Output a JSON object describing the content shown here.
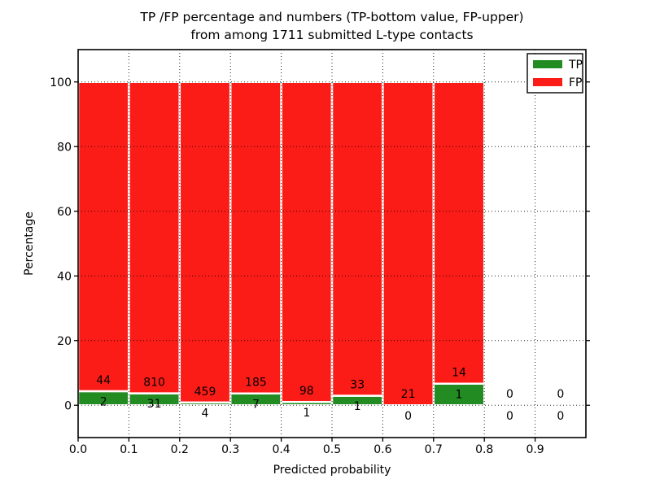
{
  "title": {
    "line1": "TP /FP percentage and numbers (TP-bottom value, FP-upper)",
    "line2": "from among 1711 submitted L-type contacts"
  },
  "axes": {
    "xlabel": "Predicted probability",
    "ylabel": "Percentage",
    "xticks": [
      "0.0",
      "0.1",
      "0.2",
      "0.3",
      "0.4",
      "0.5",
      "0.6",
      "0.7",
      "0.8",
      "0.9"
    ],
    "yticks": [
      "0",
      "20",
      "40",
      "60",
      "80",
      "100"
    ]
  },
  "legend": {
    "items": [
      {
        "label": "TP",
        "color": "#228b22"
      },
      {
        "label": "FP",
        "color": "#fc1c17"
      }
    ]
  },
  "colors": {
    "tp_green": "#228b22",
    "fp_red": "#fc1c17",
    "bar_edge": "#ffffff",
    "grid": "#000000",
    "background": "#ffffff"
  },
  "chart_data": {
    "type": "bar",
    "subtype": "stacked-percentage-histogram",
    "title": "TP /FP percentage and numbers (TP-bottom value, FP-upper) from among 1711 submitted L-type contacts",
    "xlabel": "Predicted probability",
    "ylabel": "Percentage",
    "xlim": [
      0.0,
      1.0
    ],
    "ylim": [
      -10,
      110
    ],
    "bin_width": 0.1,
    "bin_starts": [
      0.0,
      0.1,
      0.2,
      0.3,
      0.4,
      0.5,
      0.6,
      0.7,
      0.8,
      0.9
    ],
    "categories": [
      "0.0-0.1",
      "0.1-0.2",
      "0.2-0.3",
      "0.3-0.4",
      "0.4-0.5",
      "0.5-0.6",
      "0.6-0.7",
      "0.7-0.8",
      "0.8-0.9",
      "0.9-1.0"
    ],
    "total_contacts": 1711,
    "series": [
      {
        "name": "TP",
        "color": "#228b22",
        "counts": [
          2,
          31,
          4,
          7,
          1,
          1,
          0,
          1,
          0,
          0
        ]
      },
      {
        "name": "FP",
        "color": "#fc1c17",
        "counts": [
          44,
          810,
          459,
          185,
          98,
          33,
          21,
          14,
          0,
          0
        ]
      }
    ],
    "tp_percent_of_bin": [
      4.35,
      3.69,
      0.86,
      3.65,
      1.01,
      2.94,
      0.0,
      6.67,
      null,
      null
    ],
    "grid": "dotted black, drawn above bars",
    "legend_position": "upper right",
    "bar_rule": "bins with contacts stack to 100% (TP green bottom, FP red top); count labels: FP above TP segment top, TP below it; empty bins show only 0/0 labels"
  }
}
